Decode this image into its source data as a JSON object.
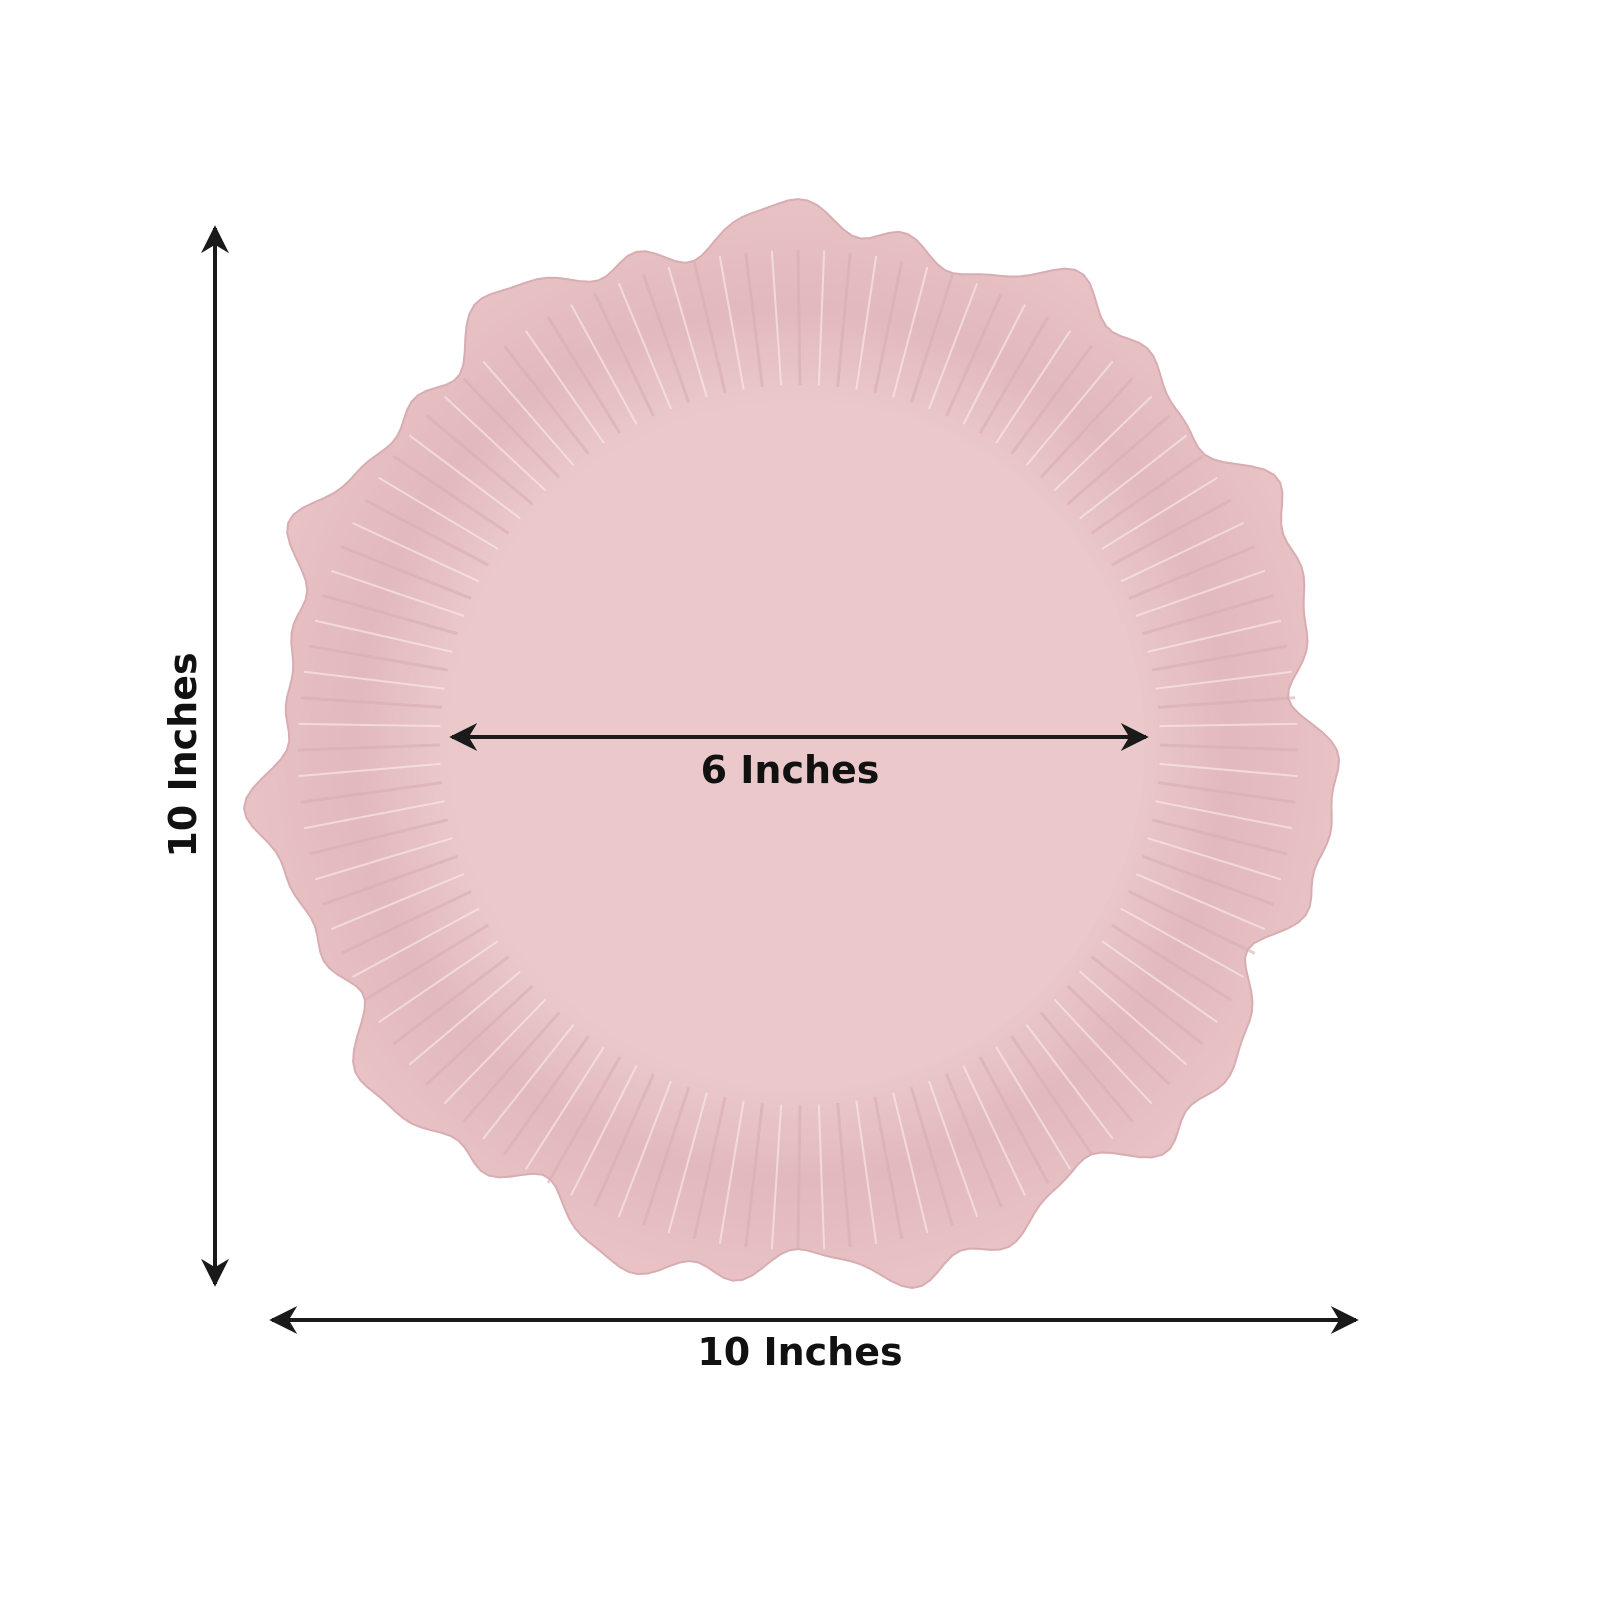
{
  "product": {
    "colors": {
      "plate": "#e7c3c6",
      "plate_center": "#ebc9cb",
      "rim_shade": "#d9aeb3",
      "highlight": "#fbeef0",
      "annotation": "#1a1a1a"
    }
  },
  "dimensions": {
    "height_label": "10 Inches",
    "width_label": "10 Inches",
    "inner_label": "6 Inches"
  }
}
